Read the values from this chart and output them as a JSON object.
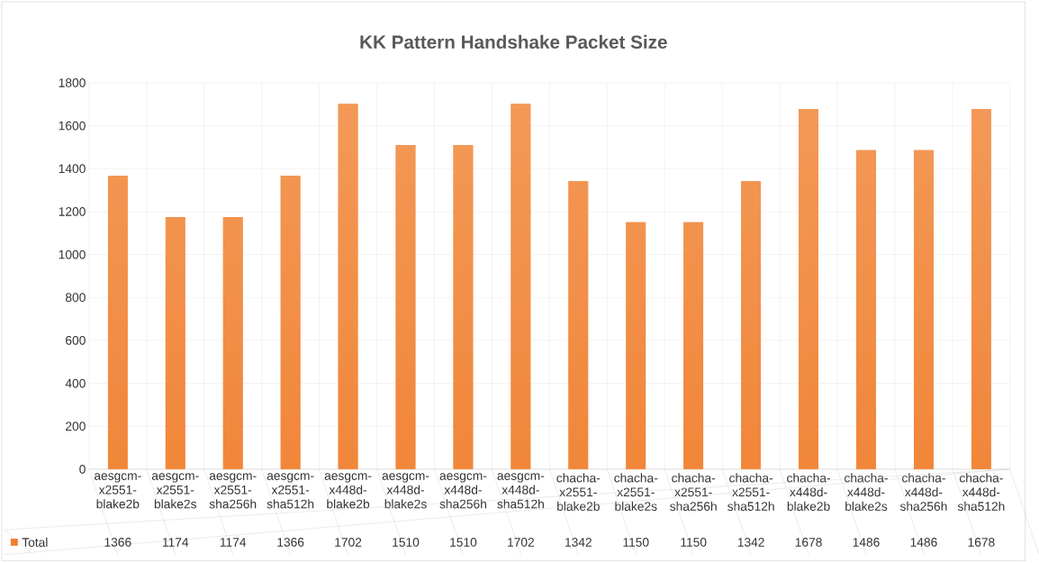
{
  "chart_data": {
    "type": "bar",
    "title": "KK Pattern Handshake Packet Size",
    "categories": [
      "aesgcm-x2551-blake2b",
      "aesgcm-x2551-blake2s",
      "aesgcm-x2551-sha256h",
      "aesgcm-x2551-sha512h",
      "aesgcm-x448d-blake2b",
      "aesgcm-x448d-blake2s",
      "aesgcm-x448d-sha256h",
      "aesgcm-x448d-sha512h",
      "chacha-x2551-blake2b",
      "chacha-x2551-blake2s",
      "chacha-x2551-sha256h",
      "chacha-x2551-sha512h",
      "chacha-x448d-blake2b",
      "chacha-x448d-blake2s",
      "chacha-x448d-sha256h",
      "chacha-x448d-sha512h"
    ],
    "series": [
      {
        "name": "Total",
        "color": "#f0802f",
        "values": [
          1366,
          1174,
          1174,
          1366,
          1702,
          1510,
          1510,
          1702,
          1342,
          1150,
          1150,
          1342,
          1678,
          1486,
          1486,
          1678
        ]
      }
    ],
    "ylim": [
      0,
      1800
    ],
    "yticks": [
      0,
      200,
      400,
      600,
      800,
      1000,
      1200,
      1400,
      1600,
      1800
    ],
    "grid": true,
    "legend": "bottom",
    "data_labels": true
  }
}
